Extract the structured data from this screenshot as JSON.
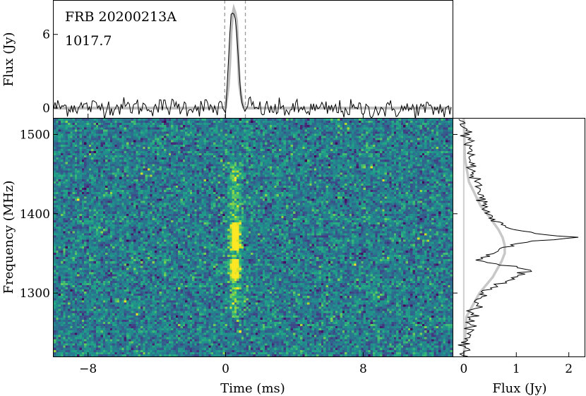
{
  "chart_data": [
    {
      "panel": "pulse-profile",
      "type": "line",
      "annotations": [
        "FRB 20200213A",
        "1017.7"
      ],
      "xlim": [
        -10,
        13.2
      ],
      "ylim": [
        -0.8,
        8.8
      ],
      "xticks": [
        -8,
        0,
        8
      ],
      "yticks": [
        0,
        6
      ],
      "ytick_labels": [
        "0",
        "6"
      ],
      "ylabel": "Flux (Jy)",
      "window_lines_x": [
        -0.05,
        1.15
      ],
      "series": [
        {
          "style": "data",
          "x": [
            -1.0,
            -0.6,
            -0.3,
            0.0,
            0.15,
            0.3,
            0.45,
            0.6,
            0.75,
            0.9,
            1.1,
            1.4,
            1.8
          ],
          "values": [
            0.1,
            -0.2,
            0.3,
            -0.4,
            3.4,
            7.6,
            7.8,
            7.1,
            3.8,
            0.7,
            -0.3,
            0.4,
            -0.1
          ]
        },
        {
          "style": "model",
          "x": [
            -1.0,
            0.0,
            0.2,
            0.35,
            0.5,
            0.65,
            0.8,
            1.0,
            1.3
          ],
          "values": [
            0.0,
            0.05,
            2.2,
            7.2,
            8.2,
            7.0,
            2.0,
            0.1,
            0.0
          ]
        }
      ]
    },
    {
      "panel": "dynamic-spectrum",
      "type": "heatmap",
      "xlabel": "Time (ms)",
      "ylabel": "Frequency (MHz)",
      "xlim": [
        -10,
        13.2
      ],
      "ylim": [
        1220,
        1520
      ],
      "xticks": [
        -8,
        0,
        8
      ],
      "xtick_labels": [
        "−8",
        "0",
        "8"
      ],
      "yticks": [
        1300,
        1400,
        1500
      ],
      "ytick_labels": [
        "1300",
        "1400",
        "1500"
      ],
      "colormap": "viridis",
      "burst": {
        "time_ms": 0.55,
        "bright_bands_mhz": [
          [
            1355,
            1390
          ],
          [
            1318,
            1342
          ]
        ],
        "faint_extent_mhz": [
          1270,
          1465
        ]
      }
    },
    {
      "panel": "spectrum",
      "type": "line",
      "xlabel": "Flux (Jy)",
      "xticks": [
        0,
        1,
        2
      ],
      "xtick_labels": [
        "0",
        "1",
        "2"
      ],
      "xlim": [
        -0.2,
        2.3
      ],
      "ylim": [
        1220,
        1520
      ],
      "series": [
        {
          "style": "data",
          "y": [
            1220,
            1250,
            1270,
            1290,
            1300,
            1310,
            1320,
            1330,
            1340,
            1350,
            1360,
            1365,
            1370,
            1375,
            1380,
            1390,
            1400,
            1420,
            1450,
            1500,
            1520
          ],
          "values": [
            0.02,
            0.1,
            0.15,
            0.25,
            0.35,
            0.6,
            1.0,
            1.35,
            0.3,
            0.55,
            0.9,
            1.25,
            2.15,
            1.4,
            0.9,
            0.6,
            0.45,
            0.35,
            0.2,
            0.05,
            0.0
          ]
        },
        {
          "style": "model",
          "y": [
            1220,
            1270,
            1300,
            1320,
            1340,
            1350,
            1360,
            1370,
            1380,
            1395,
            1410,
            1440,
            1470,
            1520
          ],
          "values": [
            0.0,
            0.05,
            0.3,
            0.55,
            0.72,
            0.78,
            0.78,
            0.74,
            0.66,
            0.5,
            0.32,
            0.1,
            0.02,
            0.0
          ]
        }
      ]
    }
  ]
}
